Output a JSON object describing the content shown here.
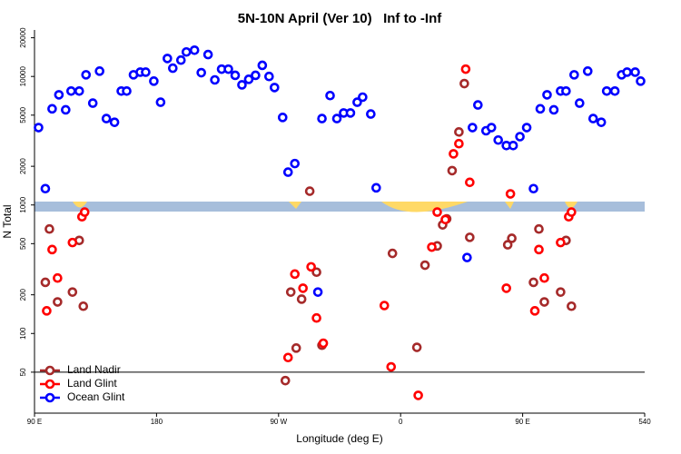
{
  "chart_data": {
    "type": "scatter",
    "title": "5N-10N April (Ver 10)   Inf to -Inf",
    "x_label": "Longitude (deg E)",
    "y_label": "N Total",
    "log_y": true,
    "legend": "bottom-left",
    "reference_line": 50,
    "xlim": [
      90,
      540
    ],
    "ylim": [
      24,
      23000
    ],
    "xticks": [
      {
        "value": 90,
        "label": "90 E"
      },
      180,
      {
        "value": 270,
        "label": "90 W"
      },
      {
        "value": 360,
        "label": "0"
      },
      {
        "value": 450,
        "label": "90 E"
      },
      540
    ],
    "yticks": [
      50,
      100,
      200,
      500,
      1000,
      2000,
      5000,
      10000,
      20000
    ],
    "series": [
      {
        "name": "Land Nadir",
        "color": "#a52a2a",
        "x": [
          98,
          101,
          107,
          118,
          123,
          126,
          275,
          279,
          283,
          287,
          293,
          298,
          302,
          354,
          372,
          378,
          387,
          391,
          394,
          398,
          403,
          407,
          411,
          439,
          442,
          458,
          462,
          466,
          478,
          482,
          486
        ],
        "values": [
          250,
          650,
          176,
          210,
          530,
          163,
          43,
          210,
          77,
          185,
          1280,
          300,
          81,
          420,
          78,
          340,
          480,
          700,
          780,
          1850,
          3700,
          8800,
          560,
          490,
          550,
          250,
          650,
          176,
          210,
          530,
          163
        ]
      },
      {
        "name": "Land Glint",
        "color": "#ff0000",
        "x": [
          99,
          103,
          107,
          118,
          125,
          127,
          277,
          282,
          288,
          294,
          298,
          303,
          348,
          353,
          373,
          383,
          387,
          393,
          399,
          403,
          408,
          411,
          438,
          441,
          459,
          462,
          466,
          478,
          484,
          486
        ],
        "values": [
          150,
          450,
          270,
          510,
          810,
          880,
          65,
          290,
          225,
          330,
          132,
          84,
          165,
          55,
          33,
          470,
          880,
          770,
          2500,
          3000,
          11400,
          1500,
          225,
          1220,
          150,
          450,
          270,
          510,
          810,
          880
        ]
      },
      {
        "name": "Ocean Glint",
        "color": "#0000ff",
        "x": [
          93,
          98,
          103,
          108,
          113,
          117,
          123,
          128,
          133,
          138,
          143,
          149,
          154,
          158,
          163,
          168,
          172,
          178,
          183,
          188,
          192,
          198,
          202,
          208,
          213,
          218,
          223,
          228,
          233,
          238,
          243,
          248,
          253,
          258,
          263,
          267,
          273,
          277,
          282,
          299,
          302,
          308,
          313,
          318,
          323,
          328,
          332,
          338,
          342,
          409,
          413,
          417,
          423,
          427,
          432,
          438,
          443,
          448,
          453,
          458,
          463,
          468,
          473,
          478,
          482,
          488,
          492,
          498,
          502,
          508,
          512,
          518,
          523,
          527,
          533,
          537
        ],
        "values": [
          4000,
          1340,
          5600,
          7200,
          5500,
          7700,
          7700,
          10300,
          6200,
          11000,
          4700,
          4400,
          7700,
          7700,
          10300,
          10800,
          10800,
          9200,
          6300,
          13800,
          11600,
          13400,
          15500,
          16000,
          10700,
          14800,
          9400,
          11400,
          11400,
          10200,
          8600,
          9500,
          10200,
          12200,
          10000,
          8200,
          4800,
          1800,
          2100,
          210,
          4700,
          7100,
          4700,
          5200,
          5200,
          6300,
          6900,
          5100,
          1360,
          390,
          4000,
          6000,
          3780,
          4000,
          3200,
          2900,
          2900,
          3400,
          4000,
          1340,
          5600,
          7200,
          5500,
          7700,
          7700,
          10300,
          6200,
          11000,
          4700,
          4400,
          7700,
          7700,
          10300,
          10800,
          10800,
          9200
        ]
      }
    ]
  }
}
